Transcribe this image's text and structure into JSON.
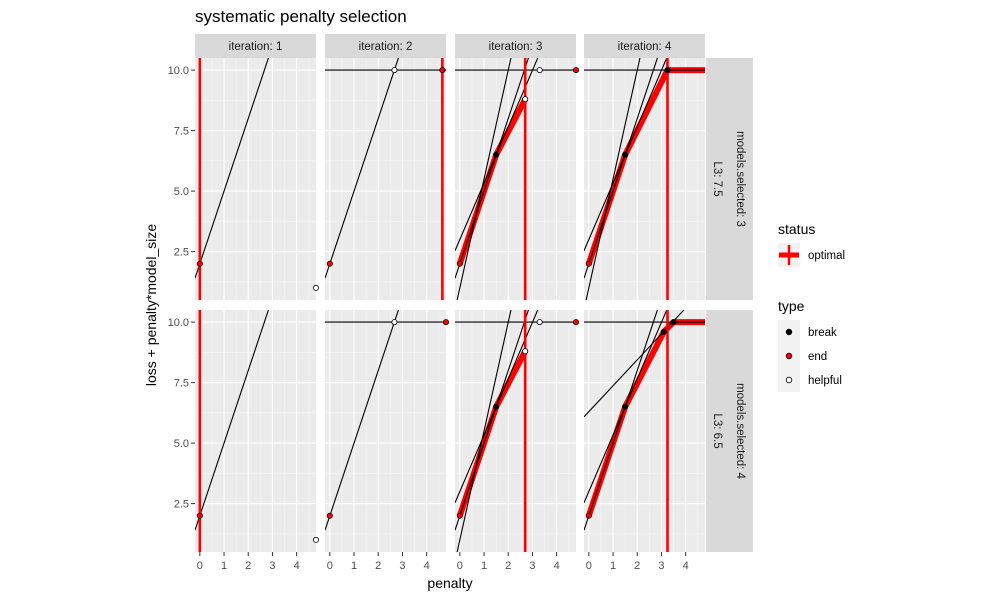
{
  "chart_data": {
    "type": "line",
    "title": "systematic penalty selection",
    "xlabel": "penalty",
    "ylabel": "loss + penalty*model_size",
    "xlim": [
      -0.2,
      4.8
    ],
    "ylim": [
      0.5,
      10.5
    ],
    "x_ticks": [
      "0",
      "1",
      "2",
      "3",
      "4"
    ],
    "y_ticks": [
      "2.5",
      "5.0",
      "7.5",
      "10.0"
    ],
    "x_tick_values": [
      0,
      1,
      2,
      3,
      4
    ],
    "y_tick_values": [
      2.5,
      5.0,
      7.5,
      10.0
    ],
    "col_strips": [
      "iteration: 1",
      "iteration: 2",
      "iteration: 3",
      "iteration: 4"
    ],
    "row_strips": [
      {
        "inner": "L3: 7.5",
        "outer": "models.selected: 3"
      },
      {
        "inner": "L3: 6.5",
        "outer": "models.selected: 4"
      }
    ],
    "grid": true,
    "legend": {
      "position": "right",
      "status": {
        "title": "status",
        "entries": [
          {
            "label": "optimal",
            "color": "#ff0000"
          }
        ]
      },
      "type": {
        "title": "type",
        "entries": [
          {
            "label": "break",
            "fill": "#000000"
          },
          {
            "label": "end",
            "fill": "#ff0000"
          },
          {
            "label": "helpful",
            "fill": "#ffffff"
          }
        ]
      }
    },
    "panels": [
      [
        {
          "lines": [
            {
              "intercept": 2,
              "slope": 3
            }
          ],
          "optimal_path": [],
          "vlines": [
            0
          ],
          "points": [
            {
              "x": 0,
              "y": 2,
              "type": "end"
            },
            {
              "x": 4.8,
              "y": 1,
              "type": "helpful"
            }
          ]
        },
        {
          "lines": [
            {
              "intercept": 2,
              "slope": 3
            },
            {
              "intercept": 10,
              "slope": 0
            }
          ],
          "optimal_path": [],
          "vlines": [
            4.65
          ],
          "points": [
            {
              "x": 0,
              "y": 2,
              "type": "end"
            },
            {
              "x": 2.67,
              "y": 10,
              "type": "helpful"
            },
            {
              "x": 4.65,
              "y": 10,
              "type": "end"
            }
          ]
        },
        {
          "lines": [
            {
              "intercept": 2,
              "slope": 3
            },
            {
              "intercept": 3,
              "slope": 2.33
            },
            {
              "intercept": 1,
              "slope": 4.5
            },
            {
              "intercept": 10,
              "slope": 0
            }
          ],
          "optimal_path": [
            [
              0,
              2
            ],
            [
              1.5,
              6.5
            ],
            [
              2.7,
              8.8
            ]
          ],
          "vlines": [
            2.7
          ],
          "points": [
            {
              "x": 0,
              "y": 2,
              "type": "end"
            },
            {
              "x": 1.5,
              "y": 6.5,
              "type": "break"
            },
            {
              "x": 2.7,
              "y": 8.8,
              "type": "helpful"
            },
            {
              "x": 3.3,
              "y": 10,
              "type": "helpful"
            },
            {
              "x": 4.8,
              "y": 10,
              "type": "end"
            }
          ]
        },
        {
          "lines": [
            {
              "intercept": 2,
              "slope": 3
            },
            {
              "intercept": 3,
              "slope": 2.33
            },
            {
              "intercept": 1,
              "slope": 4.5
            },
            {
              "intercept": 10,
              "slope": 0
            }
          ],
          "optimal_path": [
            [
              0,
              2
            ],
            [
              1.5,
              6.5
            ],
            [
              3.25,
              10
            ],
            [
              4.8,
              10
            ]
          ],
          "vlines": [
            3.25
          ],
          "points": [
            {
              "x": 0,
              "y": 2,
              "type": "end"
            },
            {
              "x": 1.5,
              "y": 6.5,
              "type": "break"
            },
            {
              "x": 3.25,
              "y": 10,
              "type": "break"
            }
          ]
        }
      ],
      [
        {
          "lines": [
            {
              "intercept": 2,
              "slope": 3
            }
          ],
          "optimal_path": [],
          "vlines": [
            0
          ],
          "points": [
            {
              "x": 0,
              "y": 2,
              "type": "end"
            },
            {
              "x": 4.8,
              "y": 1,
              "type": "helpful"
            }
          ]
        },
        {
          "lines": [
            {
              "intercept": 2,
              "slope": 3
            },
            {
              "intercept": 10,
              "slope": 0
            }
          ],
          "optimal_path": [],
          "vlines": [],
          "points": [
            {
              "x": 0,
              "y": 2,
              "type": "end"
            },
            {
              "x": 2.67,
              "y": 10,
              "type": "helpful"
            },
            {
              "x": 4.8,
              "y": 10,
              "type": "end"
            }
          ]
        },
        {
          "lines": [
            {
              "intercept": 2,
              "slope": 3
            },
            {
              "intercept": 3,
              "slope": 2.33
            },
            {
              "intercept": 1,
              "slope": 4.5
            },
            {
              "intercept": 10,
              "slope": 0
            }
          ],
          "optimal_path": [
            [
              0,
              2
            ],
            [
              1.5,
              6.5
            ],
            [
              2.7,
              8.8
            ]
          ],
          "vlines": [
            2.7
          ],
          "points": [
            {
              "x": 0,
              "y": 2,
              "type": "end"
            },
            {
              "x": 1.5,
              "y": 6.5,
              "type": "break"
            },
            {
              "x": 2.7,
              "y": 8.8,
              "type": "helpful"
            },
            {
              "x": 3.3,
              "y": 10,
              "type": "helpful"
            },
            {
              "x": 4.8,
              "y": 10,
              "type": "end"
            }
          ]
        },
        {
          "lines": [
            {
              "intercept": 2,
              "slope": 3
            },
            {
              "intercept": 3,
              "slope": 2.33
            },
            {
              "intercept": 6.3,
              "slope": 1.07
            },
            {
              "intercept": 10,
              "slope": 0
            }
          ],
          "optimal_path": [
            [
              0,
              2
            ],
            [
              1.5,
              6.5
            ],
            [
              3.1,
              9.6
            ],
            [
              3.5,
              10
            ],
            [
              4.8,
              10
            ]
          ],
          "vlines": [
            3.25
          ],
          "points": [
            {
              "x": 0,
              "y": 2,
              "type": "end"
            },
            {
              "x": 1.5,
              "y": 6.5,
              "type": "break"
            },
            {
              "x": 3.1,
              "y": 9.6,
              "type": "break"
            },
            {
              "x": 3.5,
              "y": 10,
              "type": "break"
            }
          ]
        }
      ]
    ]
  }
}
